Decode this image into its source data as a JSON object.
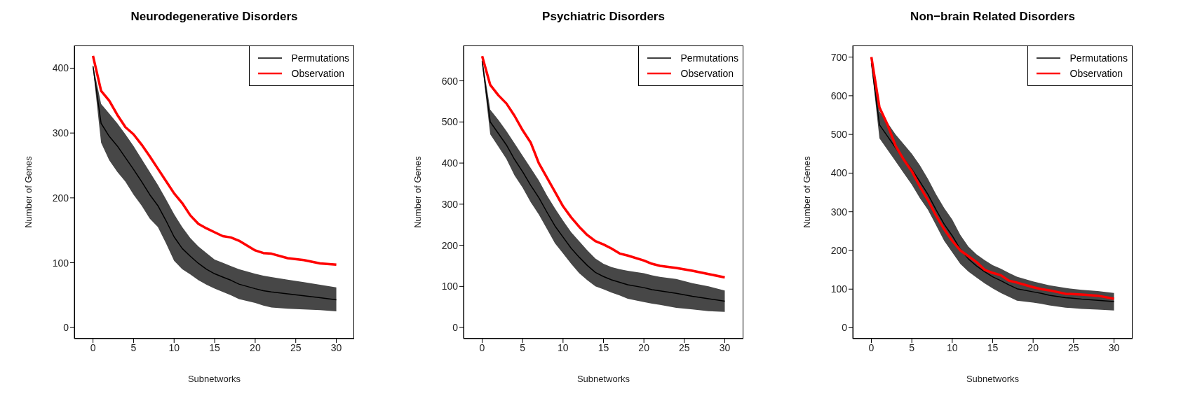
{
  "chart_data": [
    {
      "type": "line",
      "title": "Neurodegenerative Disorders",
      "xlabel": "Subnetworks",
      "ylabel": "Number of Genes",
      "x": [
        0,
        1,
        2,
        3,
        4,
        5,
        6,
        7,
        8,
        9,
        10,
        11,
        12,
        13,
        14,
        15,
        16,
        17,
        18,
        20,
        21,
        22,
        24,
        26,
        28,
        30
      ],
      "xlim": [
        -2.3,
        32.2
      ],
      "xticks": [
        0,
        5,
        10,
        15,
        20,
        25,
        30
      ],
      "ylim": [
        -17,
        435
      ],
      "yticks": [
        0,
        100,
        200,
        300,
        400
      ],
      "grid": false,
      "legend": "top right",
      "marker": "none",
      "line_style": "solid",
      "series": [
        {
          "name": "Permutations",
          "color": "#000000",
          "values": [
            403,
            315,
            295,
            280,
            262,
            244,
            225,
            205,
            188,
            165,
            140,
            122,
            110,
            99,
            90,
            83,
            78,
            73,
            67,
            60,
            57,
            55,
            52,
            49,
            46,
            43
          ],
          "lower": [
            400,
            285,
            258,
            240,
            225,
            205,
            188,
            168,
            155,
            130,
            103,
            90,
            82,
            73,
            66,
            60,
            55,
            50,
            44,
            38,
            34,
            31,
            29,
            28,
            27,
            25
          ],
          "upper": [
            405,
            345,
            330,
            315,
            298,
            280,
            260,
            240,
            220,
            198,
            175,
            155,
            138,
            125,
            115,
            105,
            100,
            95,
            90,
            83,
            80,
            78,
            74,
            70,
            66,
            62
          ]
        },
        {
          "name": "Observation",
          "color": "#ff0000",
          "values": [
            419,
            365,
            350,
            328,
            309,
            298,
            282,
            264,
            245,
            226,
            207,
            192,
            173,
            160,
            153,
            147,
            141,
            139,
            134,
            119,
            115,
            114,
            107,
            104,
            99,
            97
          ]
        }
      ]
    },
    {
      "type": "line",
      "title": "Psychiatric Disorders",
      "xlabel": "Subnetworks",
      "ylabel": "Number of Genes",
      "x": [
        0,
        1,
        2,
        3,
        4,
        5,
        6,
        7,
        8,
        9,
        10,
        11,
        12,
        13,
        14,
        15,
        16,
        17,
        18,
        20,
        21,
        22,
        24,
        26,
        28,
        30
      ],
      "xlim": [
        -2.3,
        32.3
      ],
      "xticks": [
        0,
        5,
        10,
        15,
        20,
        25,
        30
      ],
      "ylim": [
        -27,
        686
      ],
      "yticks": [
        0,
        100,
        200,
        300,
        400,
        500,
        600
      ],
      "grid": false,
      "legend": "top right",
      "marker": "none",
      "line_style": "solid",
      "series": [
        {
          "name": "Permutations",
          "color": "#000000",
          "values": [
            648,
            500,
            472,
            444,
            409,
            379,
            346,
            316,
            281,
            247,
            220,
            193,
            171,
            151,
            134,
            124,
            116,
            110,
            104,
            97,
            92,
            89,
            83,
            76,
            70,
            64
          ],
          "lower": [
            640,
            470,
            440,
            410,
            370,
            340,
            305,
            275,
            240,
            205,
            180,
            155,
            132,
            115,
            100,
            93,
            85,
            78,
            70,
            62,
            58,
            55,
            48,
            44,
            40,
            38
          ],
          "upper": [
            655,
            530,
            505,
            478,
            448,
            418,
            388,
            358,
            322,
            290,
            260,
            232,
            210,
            188,
            168,
            155,
            147,
            142,
            138,
            132,
            127,
            123,
            118,
            108,
            100,
            90
          ]
        },
        {
          "name": "Observation",
          "color": "#ff0000",
          "values": [
            660,
            590,
            565,
            545,
            515,
            480,
            450,
            400,
            365,
            330,
            295,
            268,
            245,
            225,
            210,
            202,
            192,
            180,
            175,
            163,
            155,
            150,
            145,
            138,
            130,
            122
          ]
        }
      ]
    },
    {
      "type": "line",
      "title": "Non−brain Related Disorders",
      "xlabel": "Subnetworks",
      "ylabel": "Number of Genes",
      "x": [
        0,
        1,
        2,
        3,
        4,
        5,
        6,
        7,
        8,
        9,
        10,
        11,
        12,
        13,
        14,
        15,
        16,
        17,
        18,
        20,
        21,
        22,
        24,
        26,
        28,
        30
      ],
      "xlim": [
        -2.3,
        32.3
      ],
      "xticks": [
        0,
        5,
        10,
        15,
        20,
        25,
        30
      ],
      "ylim": [
        -28,
        730
      ],
      "yticks": [
        0,
        100,
        200,
        300,
        400,
        500,
        600,
        700
      ],
      "grid": false,
      "legend": "top right",
      "marker": "none",
      "line_style": "solid",
      "series": [
        {
          "name": "Permutations",
          "color": "#000000",
          "values": [
            685,
            525,
            495,
            465,
            437,
            410,
            378,
            345,
            305,
            268,
            238,
            203,
            178,
            160,
            145,
            132,
            122,
            111,
            101,
            93,
            89,
            84,
            78,
            74,
            71,
            68
          ],
          "lower": [
            680,
            490,
            460,
            430,
            400,
            370,
            335,
            305,
            265,
            225,
            195,
            165,
            145,
            130,
            115,
            102,
            90,
            80,
            70,
            65,
            62,
            58,
            52,
            49,
            47,
            45
          ],
          "upper": [
            690,
            560,
            530,
            500,
            475,
            450,
            420,
            385,
            345,
            310,
            280,
            240,
            210,
            190,
            175,
            162,
            153,
            142,
            132,
            120,
            115,
            110,
            103,
            98,
            95,
            90
          ]
        },
        {
          "name": "Observation",
          "color": "#ff0000",
          "values": [
            700,
            570,
            525,
            470,
            435,
            405,
            365,
            330,
            290,
            255,
            225,
            200,
            185,
            170,
            150,
            142,
            136,
            122,
            117,
            105,
            100,
            97,
            88,
            86,
            83,
            75
          ]
        }
      ]
    }
  ]
}
